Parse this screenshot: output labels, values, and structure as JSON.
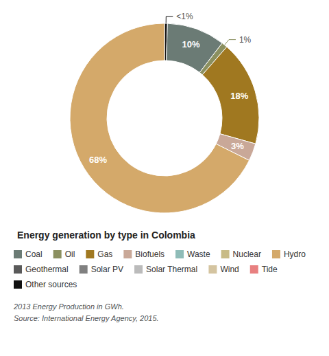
{
  "chart_data": {
    "type": "pie",
    "title": "Energy generation by type in Colombia",
    "categories": [
      "Other sources",
      "Coal",
      "Oil",
      "Gas",
      "Biofuels",
      "Hydro"
    ],
    "values": [
      0.5,
      10,
      1,
      18,
      3,
      68
    ],
    "value_labels": [
      "<1%",
      "10%",
      "1%",
      "18%",
      "3%",
      "68%"
    ],
    "colors": [
      "#111111",
      "#6B7B75",
      "#8B9060",
      "#A07820",
      "#C9A898",
      "#D4A96A"
    ],
    "data_labels": true,
    "legend_items": [
      {
        "name": "Coal",
        "color": "#6B7B75"
      },
      {
        "name": "Oil",
        "color": "#8B9060"
      },
      {
        "name": "Gas",
        "color": "#A07820"
      },
      {
        "name": "Biofuels",
        "color": "#C9A898"
      },
      {
        "name": "Waste",
        "color": "#8FBCB8"
      },
      {
        "name": "Nuclear",
        "color": "#C8BB85"
      },
      {
        "name": "Hydro",
        "color": "#D4A96A"
      },
      {
        "name": "Geothermal",
        "color": "#5A5A5A"
      },
      {
        "name": "Solar PV",
        "color": "#808080"
      },
      {
        "name": "Solar Thermal",
        "color": "#BBBBBB"
      },
      {
        "name": "Wind",
        "color": "#D4C4A0"
      },
      {
        "name": "Tide",
        "color": "#E88080"
      },
      {
        "name": "Other sources",
        "color": "#111111"
      }
    ],
    "footnotes": [
      "2013 Energy Production in GWh.",
      "Source: International Energy Agency, 2015."
    ]
  }
}
